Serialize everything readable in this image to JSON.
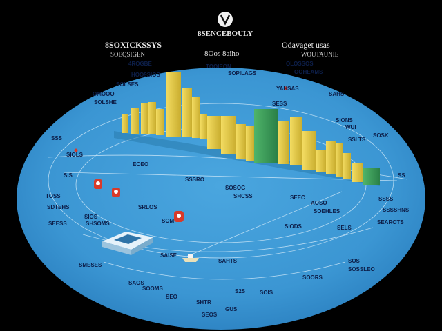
{
  "colors": {
    "background": "#000000",
    "ellipse": "#3b96d3",
    "ellipse_dark": "#1f6ea8",
    "bar_yellow": "#e8cf4a",
    "bar_green": "#3aa05a",
    "pin_red": "#d83a2a",
    "ring_line": "#bfe0f5"
  },
  "header": {
    "logo_icon": "circle-emblem-icon",
    "center_title": "8SENCEBOULY",
    "left_title": "8SOXICKSSYS",
    "left_sub": "SOEQSIGEN",
    "center_sub": "8Oos 8aiho",
    "right_title": "Odavaget usas",
    "right_sub": "WOUTAUNIE"
  },
  "map_labels": [
    "4ROGBE",
    "SOLSES",
    "HOO9SIOS",
    "OMOOO",
    "SOLSHE",
    "TOOIEON",
    "SOPILAGS",
    "SSS",
    "SIOLS",
    "EOEO",
    "OLOSSOS",
    "OOHEAMS",
    "YAHSAS",
    "SAHS",
    "WUI",
    "SSLTS",
    "SOSK",
    "SIONS",
    "SS",
    "SSSS",
    "SSSSHNS",
    "SEAROTS",
    "SELS",
    "SOS",
    "SOSSLEO",
    "SOORS",
    "AOSO",
    "SEEC",
    "SOSOG",
    "SHCSS",
    "SSSRO",
    "SRLOS",
    "SOM",
    "SIOS",
    "SHSOMS",
    "SDTEHS",
    "SEESS",
    "TOSS",
    "SIS",
    "SMESES",
    "SAOS",
    "SOOMS",
    "SEO",
    "SHTR",
    "GUS",
    "S2S",
    "SEOS",
    "SOIS",
    "SIODS",
    "SOEHLES",
    "SAISE",
    "SAHTS",
    "SESS"
  ],
  "icons": {
    "pin_1": "map-pin-icon",
    "pin_2": "map-pin-icon",
    "pin_3": "map-pin-icon",
    "building": "isometric-building-icon",
    "ship": "ship-icon",
    "skyline": "city-skyline-bars"
  }
}
